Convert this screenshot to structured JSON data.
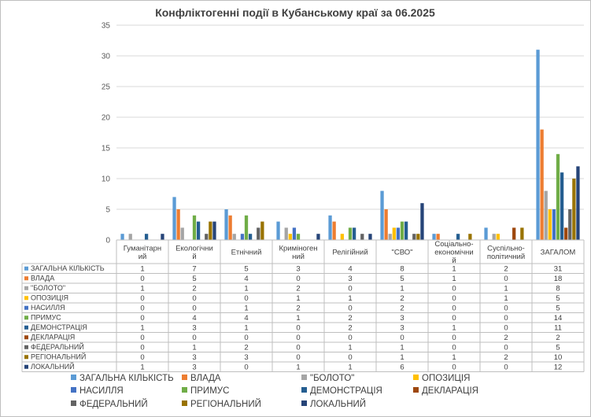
{
  "chart_data": {
    "type": "bar",
    "title": "Конфліктогенні події в Кубанському краї за 06.2025",
    "xlabel": "",
    "ylabel": "",
    "ylim": [
      0,
      35
    ],
    "yticks": [
      0,
      5,
      10,
      15,
      20,
      25,
      30,
      35
    ],
    "grid": true,
    "legend_position": "bottom",
    "data_table": true,
    "categories": [
      [
        "Гуманітарн",
        "ий"
      ],
      [
        "Екологічни",
        "й"
      ],
      [
        "Етнічний"
      ],
      [
        "Криміноген",
        "ний"
      ],
      [
        "Релігійний"
      ],
      [
        "\"СВО\""
      ],
      [
        "Соціально-",
        "економічни",
        "й"
      ],
      [
        "Суспільно-",
        "політичний"
      ],
      [
        "ЗАГАЛОМ"
      ]
    ],
    "series": [
      {
        "name": "ЗАГАЛЬНА КІЛЬКІСТЬ",
        "color": "#5b9bd5",
        "values": [
          1,
          7,
          5,
          3,
          4,
          8,
          1,
          2,
          31
        ]
      },
      {
        "name": "ВЛАДА",
        "color": "#ed7d31",
        "values": [
          0,
          5,
          4,
          0,
          3,
          5,
          1,
          0,
          18
        ]
      },
      {
        "name": "\"БОЛОТО\"",
        "color": "#a5a5a5",
        "values": [
          1,
          2,
          1,
          2,
          0,
          1,
          0,
          1,
          8
        ]
      },
      {
        "name": "ОПОЗИЦІЯ",
        "color": "#ffc000",
        "values": [
          0,
          0,
          0,
          1,
          1,
          2,
          0,
          1,
          5
        ]
      },
      {
        "name": "НАСИЛЛЯ",
        "color": "#4472c4",
        "values": [
          0,
          0,
          1,
          2,
          0,
          2,
          0,
          0,
          5
        ]
      },
      {
        "name": "ПРИМУС",
        "color": "#70ad47",
        "values": [
          0,
          4,
          4,
          1,
          2,
          3,
          0,
          0,
          14
        ]
      },
      {
        "name": "ДЕМОНСТРАЦІЯ",
        "color": "#255e91",
        "values": [
          1,
          3,
          1,
          0,
          2,
          3,
          1,
          0,
          11
        ]
      },
      {
        "name": "ДЕКЛАРАЦІЯ",
        "color": "#9e480e",
        "values": [
          0,
          0,
          0,
          0,
          0,
          0,
          0,
          2,
          2
        ]
      },
      {
        "name": "ФЕДЕРАЛЬНИЙ",
        "color": "#636363",
        "values": [
          0,
          1,
          2,
          0,
          1,
          1,
          0,
          0,
          5
        ]
      },
      {
        "name": "РЕГІОНАЛЬНИЙ",
        "color": "#997300",
        "values": [
          0,
          3,
          3,
          0,
          0,
          1,
          1,
          2,
          10
        ]
      },
      {
        "name": "ЛОКАЛЬНИЙ",
        "color": "#264478",
        "values": [
          1,
          3,
          0,
          1,
          1,
          6,
          0,
          0,
          12
        ]
      }
    ]
  }
}
